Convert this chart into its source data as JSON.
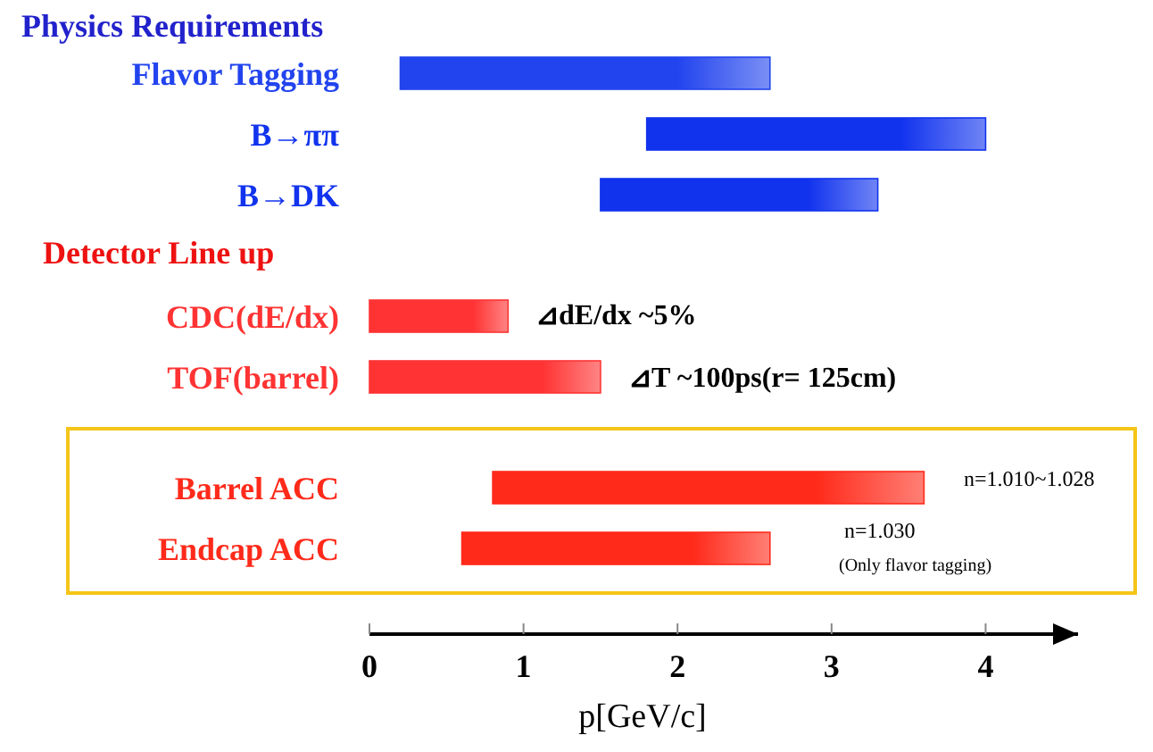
{
  "chart_data": {
    "type": "bar",
    "orientation": "horizontal",
    "categories": [
      "Flavor Tagging",
      "B→ππ",
      "B→DK",
      "CDC(dE/dx)",
      "TOF(barrel)",
      "Barrel ACC",
      "Endcap ACC"
    ],
    "base": [
      0.2,
      1.8,
      1.5,
      0,
      0,
      0.8,
      0.6
    ],
    "values": [
      2.4,
      2.2,
      1.8,
      0.9,
      1.5,
      2.8,
      2.0
    ],
    "colors": [
      "#2244ee",
      "#1133ee",
      "#1133ee",
      "#ff3333",
      "#ff3333",
      "#ff2a1a",
      "#ff2a1a"
    ],
    "xlim": [
      0,
      4.6
    ],
    "xticks": [
      0,
      1,
      2,
      3,
      4
    ],
    "xlabel": "p[GeV/c]",
    "annotations": [
      "Physics Requirements",
      "Detector Line up",
      "⊿dE/dx  ~5%",
      "⊿T  ~100ps(r= 125cm)",
      "n=1.010~1.028",
      "n=1.030",
      "(Only flavor tagging)"
    ]
  }
}
